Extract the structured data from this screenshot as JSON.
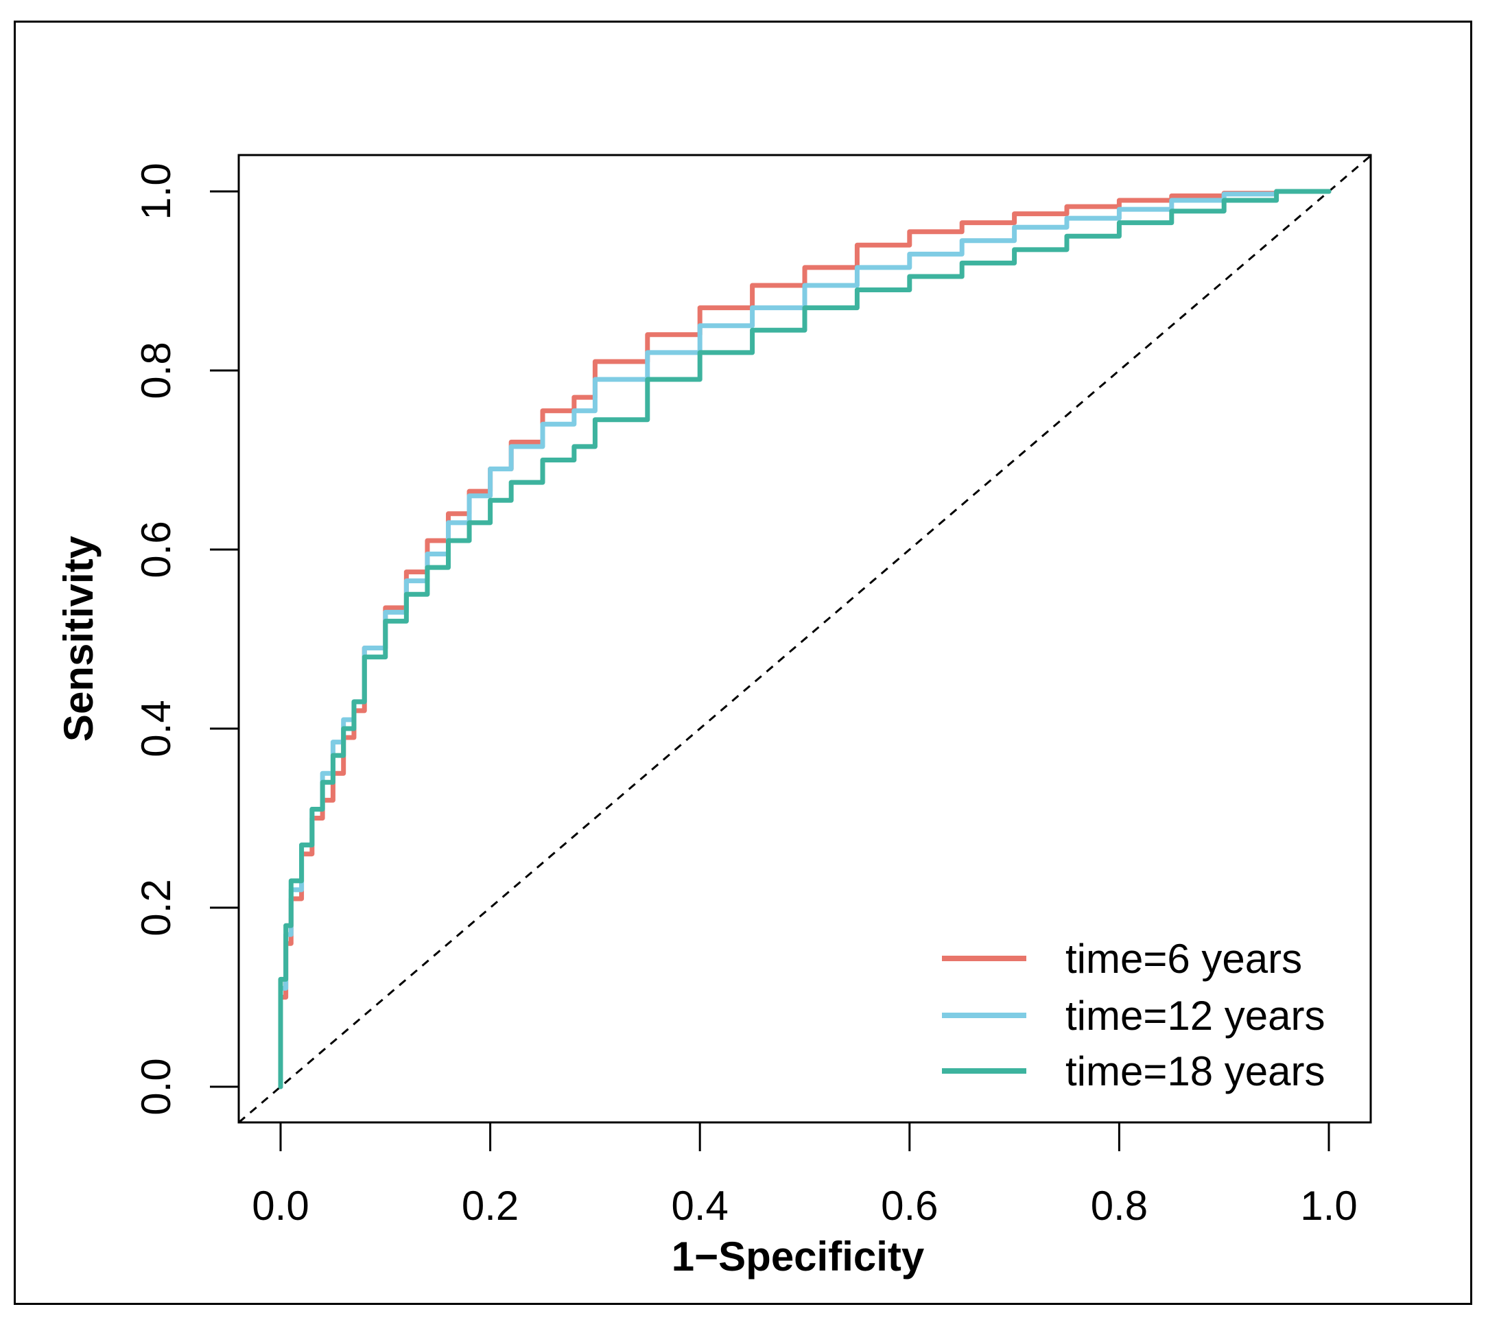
{
  "chart_data": {
    "type": "line",
    "title": "",
    "xlabel": "1−Specificity",
    "ylabel": "Sensitivity",
    "xlim": [
      0.0,
      1.0
    ],
    "ylim": [
      0.0,
      1.0
    ],
    "xticks": [
      "0.0",
      "0.2",
      "0.4",
      "0.6",
      "0.8",
      "1.0"
    ],
    "yticks": [
      "0.0",
      "0.2",
      "0.4",
      "0.6",
      "0.8",
      "1.0"
    ],
    "grid": false,
    "legend_position": "bottom-right",
    "reference_line": {
      "style": "dashed",
      "color": "#000000",
      "points": [
        [
          0,
          0
        ],
        [
          1,
          1
        ]
      ]
    },
    "series": [
      {
        "name": "time=6 years",
        "color": "#E8756A",
        "points": [
          [
            0,
            0
          ],
          [
            0.005,
            0.1
          ],
          [
            0.01,
            0.16
          ],
          [
            0.02,
            0.21
          ],
          [
            0.03,
            0.26
          ],
          [
            0.04,
            0.3
          ],
          [
            0.05,
            0.32
          ],
          [
            0.06,
            0.35
          ],
          [
            0.07,
            0.39
          ],
          [
            0.08,
            0.42
          ],
          [
            0.1,
            0.49
          ],
          [
            0.12,
            0.535
          ],
          [
            0.14,
            0.575
          ],
          [
            0.16,
            0.61
          ],
          [
            0.18,
            0.64
          ],
          [
            0.2,
            0.665
          ],
          [
            0.22,
            0.69
          ],
          [
            0.25,
            0.72
          ],
          [
            0.28,
            0.755
          ],
          [
            0.3,
            0.77
          ],
          [
            0.35,
            0.81
          ],
          [
            0.4,
            0.84
          ],
          [
            0.45,
            0.87
          ],
          [
            0.5,
            0.895
          ],
          [
            0.55,
            0.915
          ],
          [
            0.6,
            0.94
          ],
          [
            0.65,
            0.955
          ],
          [
            0.7,
            0.965
          ],
          [
            0.75,
            0.975
          ],
          [
            0.8,
            0.983
          ],
          [
            0.85,
            0.99
          ],
          [
            0.9,
            0.995
          ],
          [
            0.95,
            0.998
          ],
          [
            1.0,
            1.0
          ]
        ]
      },
      {
        "name": "time=12 years",
        "color": "#7FCCE4",
        "points": [
          [
            0,
            0
          ],
          [
            0.005,
            0.11
          ],
          [
            0.01,
            0.17
          ],
          [
            0.02,
            0.22
          ],
          [
            0.03,
            0.27
          ],
          [
            0.04,
            0.31
          ],
          [
            0.05,
            0.35
          ],
          [
            0.06,
            0.385
          ],
          [
            0.07,
            0.41
          ],
          [
            0.08,
            0.43
          ],
          [
            0.1,
            0.49
          ],
          [
            0.12,
            0.53
          ],
          [
            0.14,
            0.565
          ],
          [
            0.16,
            0.595
          ],
          [
            0.18,
            0.63
          ],
          [
            0.2,
            0.66
          ],
          [
            0.22,
            0.69
          ],
          [
            0.25,
            0.715
          ],
          [
            0.28,
            0.74
          ],
          [
            0.3,
            0.755
          ],
          [
            0.35,
            0.79
          ],
          [
            0.4,
            0.82
          ],
          [
            0.45,
            0.85
          ],
          [
            0.5,
            0.87
          ],
          [
            0.55,
            0.895
          ],
          [
            0.6,
            0.915
          ],
          [
            0.65,
            0.93
          ],
          [
            0.7,
            0.945
          ],
          [
            0.75,
            0.96
          ],
          [
            0.8,
            0.97
          ],
          [
            0.85,
            0.98
          ],
          [
            0.9,
            0.99
          ],
          [
            0.95,
            0.997
          ],
          [
            1.0,
            1.0
          ]
        ]
      },
      {
        "name": "time=18 years",
        "color": "#3DB39E",
        "points": [
          [
            0,
            0
          ],
          [
            0.005,
            0.12
          ],
          [
            0.01,
            0.18
          ],
          [
            0.02,
            0.23
          ],
          [
            0.03,
            0.27
          ],
          [
            0.04,
            0.31
          ],
          [
            0.05,
            0.34
          ],
          [
            0.06,
            0.37
          ],
          [
            0.07,
            0.4
          ],
          [
            0.08,
            0.43
          ],
          [
            0.1,
            0.48
          ],
          [
            0.12,
            0.52
          ],
          [
            0.14,
            0.55
          ],
          [
            0.16,
            0.58
          ],
          [
            0.18,
            0.61
          ],
          [
            0.2,
            0.63
          ],
          [
            0.22,
            0.655
          ],
          [
            0.25,
            0.675
          ],
          [
            0.28,
            0.7
          ],
          [
            0.3,
            0.715
          ],
          [
            0.35,
            0.745
          ],
          [
            0.4,
            0.79
          ],
          [
            0.45,
            0.82
          ],
          [
            0.5,
            0.845
          ],
          [
            0.55,
            0.87
          ],
          [
            0.6,
            0.89
          ],
          [
            0.65,
            0.905
          ],
          [
            0.7,
            0.92
          ],
          [
            0.75,
            0.935
          ],
          [
            0.8,
            0.95
          ],
          [
            0.85,
            0.965
          ],
          [
            0.9,
            0.978
          ],
          [
            0.95,
            0.99
          ],
          [
            1.0,
            1.0
          ]
        ]
      }
    ]
  }
}
